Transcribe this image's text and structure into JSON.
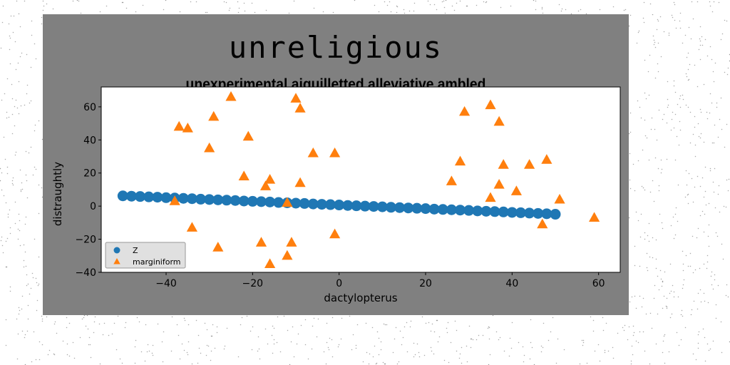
{
  "colors": {
    "figure_bg": "#808080",
    "series_z": "#1f77b4",
    "series_m": "#ff7f0e"
  },
  "chart_data": {
    "type": "scatter",
    "title": "unreligious",
    "subtitle": "unexperimental aiguilletted alleviative ambled",
    "xlabel": "dactylopterus",
    "ylabel": "distraughtly",
    "xlim": [
      -55,
      65
    ],
    "ylim": [
      -40,
      72
    ],
    "xticks": [
      -40,
      -20,
      0,
      20,
      40,
      60
    ],
    "yticks": [
      -40,
      -20,
      0,
      20,
      40,
      60
    ],
    "xtick_labels": [
      "−40",
      "−20",
      "0",
      "20",
      "40",
      "60"
    ],
    "ytick_labels": [
      "−40",
      "−20",
      "0",
      "20",
      "40",
      "60"
    ],
    "grid": false,
    "legend_position": "lower-left",
    "series": [
      {
        "name": "Z",
        "marker": "circle",
        "color": "#1f77b4",
        "x": [
          -50,
          -48,
          -46,
          -44,
          -42,
          -40,
          -38,
          -36,
          -34,
          -32,
          -30,
          -28,
          -26,
          -24,
          -22,
          -20,
          -18,
          -16,
          -14,
          -12,
          -10,
          -8,
          -6,
          -4,
          -2,
          0,
          2,
          4,
          6,
          8,
          10,
          12,
          14,
          16,
          18,
          20,
          22,
          24,
          26,
          28,
          30,
          32,
          34,
          36,
          38,
          40,
          42,
          44,
          46,
          48,
          50
        ],
        "y": [
          6.2,
          6.0,
          5.8,
          5.6,
          5.4,
          5.1,
          4.9,
          4.7,
          4.5,
          4.2,
          4.0,
          3.8,
          3.6,
          3.4,
          3.1,
          2.9,
          2.7,
          2.5,
          2.2,
          2.0,
          1.8,
          1.6,
          1.3,
          1.1,
          0.9,
          0.7,
          0.4,
          0.2,
          0.0,
          -0.2,
          -0.4,
          -0.7,
          -0.9,
          -1.1,
          -1.3,
          -1.5,
          -1.8,
          -2.0,
          -2.2,
          -2.4,
          -2.6,
          -2.9,
          -3.1,
          -3.3,
          -3.5,
          -3.8,
          -4.0,
          -4.2,
          -4.4,
          -4.6,
          -4.9
        ]
      },
      {
        "name": "marginiform",
        "marker": "triangle",
        "color": "#ff7f0e",
        "x": [
          -37,
          -35,
          -25,
          -10,
          -9,
          -29,
          -30,
          -21,
          -22,
          -16,
          -17,
          -9,
          -6,
          -1,
          -38,
          -34,
          -28,
          -18,
          -16,
          -12,
          -11,
          -1,
          -12,
          29,
          35,
          37,
          28,
          26,
          38,
          44,
          48,
          35,
          37,
          41,
          51,
          59,
          47
        ],
        "y": [
          48,
          47,
          66,
          65,
          59,
          54,
          35,
          42,
          18,
          16,
          12,
          14,
          32,
          32,
          3,
          -13,
          -25,
          -22,
          -35,
          2,
          -22,
          -17,
          -30,
          57,
          61,
          51,
          27,
          15,
          25,
          25,
          28,
          5,
          13,
          9,
          4,
          -7,
          -11
        ]
      }
    ]
  }
}
